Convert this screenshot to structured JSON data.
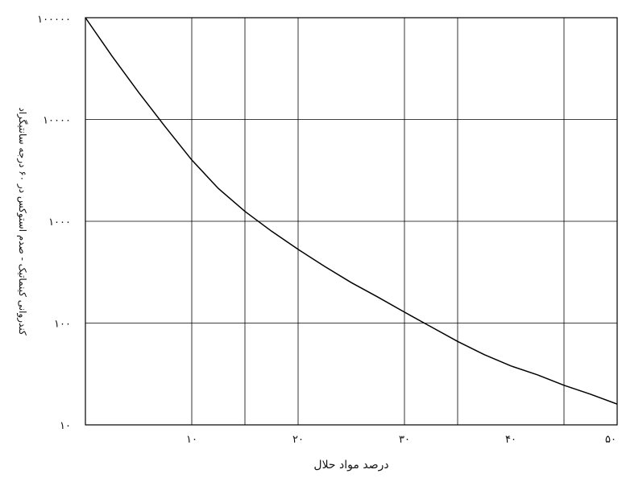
{
  "chart_data": {
    "type": "line",
    "xlabel": "درصد مواد حلال",
    "ylabel": "کندروانی کینماتیک  -  صدم استوکس در ۶۰ درجه سانتیگراد",
    "xlim": [
      0,
      50
    ],
    "ylim": [
      10,
      100000
    ],
    "yscale": "log",
    "grid": true,
    "x_ticks": [
      {
        "value": 10,
        "label": "۱۰"
      },
      {
        "value": 20,
        "label": "۲۰"
      },
      {
        "value": 30,
        "label": "۳۰"
      },
      {
        "value": 40,
        "label": "۴۰"
      },
      {
        "value": 50,
        "label": "۵۰"
      }
    ],
    "y_ticks": [
      {
        "value": 10,
        "label": "۱۰"
      },
      {
        "value": 100,
        "label": "۱۰۰"
      },
      {
        "value": 1000,
        "label": "۱۰۰۰"
      },
      {
        "value": 10000,
        "label": "۱۰۰۰۰"
      },
      {
        "value": 100000,
        "label": "۱۰۰۰۰۰"
      }
    ],
    "x_gridlines": [
      10,
      15,
      20,
      30,
      35,
      45,
      50
    ],
    "series": [
      {
        "x": [
          0,
          2.5,
          5,
          7.5,
          10,
          12.5,
          15,
          17.5,
          20,
          22.5,
          25,
          27.5,
          30,
          32.5,
          35,
          37.5,
          40,
          42.5,
          45,
          47.5,
          50
        ],
        "y": [
          100000,
          42000,
          18500,
          8500,
          4000,
          2100,
          1250,
          800,
          530,
          360,
          250,
          180,
          128,
          92,
          66,
          49,
          38,
          31,
          24.5,
          20,
          16
        ]
      }
    ]
  }
}
